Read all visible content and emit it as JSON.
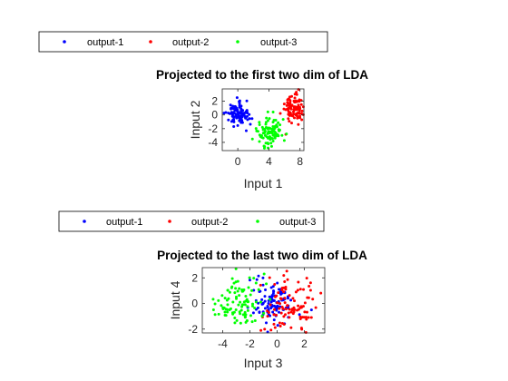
{
  "chart_data": [
    {
      "type": "scatter",
      "title": "Projected to the first two dim of LDA",
      "xlabel": "Input 1",
      "ylabel": "Input 2",
      "xlim": [
        -2,
        8.5
      ],
      "ylim": [
        -5.2,
        3.8
      ],
      "xticks": [
        0,
        4,
        8
      ],
      "xtick_labels": [
        "0",
        "4",
        "8"
      ],
      "yticks": [
        -4,
        -2,
        0,
        2
      ],
      "ytick_labels": [
        "-4",
        "-2",
        "0",
        "2"
      ],
      "legend": {
        "placement": "top",
        "orientation": "horizontal",
        "entries": [
          "output-1",
          "output-2",
          "output-3"
        ]
      },
      "series": [
        {
          "name": "output-1",
          "color": "#0000ff",
          "cluster": {
            "mean": [
              0.0,
              0.0
            ],
            "sd": [
              0.7,
              0.85
            ]
          },
          "count": 100
        },
        {
          "name": "output-2",
          "color": "#ff0000",
          "cluster": {
            "mean": [
              7.3,
              1.0
            ],
            "sd": [
              0.75,
              1.1
            ]
          },
          "count": 100
        },
        {
          "name": "output-3",
          "color": "#00ff00",
          "cluster": {
            "mean": [
              4.2,
              -2.5
            ],
            "sd": [
              0.85,
              1.0
            ]
          },
          "count": 100
        }
      ]
    },
    {
      "type": "scatter",
      "title": "Projected to the last two dim of LDA",
      "xlabel": "Input 3",
      "ylabel": "Input 4",
      "xlim": [
        -5.5,
        3.5
      ],
      "ylim": [
        -2.3,
        2.8
      ],
      "xticks": [
        -4,
        -2,
        0,
        2
      ],
      "xtick_labels": [
        "-4",
        "-2",
        "0",
        "2"
      ],
      "yticks": [
        -2,
        0,
        2
      ],
      "ytick_labels": [
        "-2",
        "0",
        "2"
      ],
      "legend": {
        "placement": "top",
        "orientation": "horizontal",
        "entries": [
          "output-1",
          "output-2",
          "output-3"
        ]
      },
      "series": [
        {
          "name": "output-1",
          "color": "#0000ff",
          "cluster": {
            "mean": [
              -0.2,
              -0.1
            ],
            "sd": [
              0.8,
              0.9
            ]
          },
          "count": 100
        },
        {
          "name": "output-2",
          "color": "#ff0000",
          "cluster": {
            "mean": [
              1.0,
              0.0
            ],
            "sd": [
              1.0,
              1.0
            ]
          },
          "count": 100
        },
        {
          "name": "output-3",
          "color": "#00ff00",
          "cluster": {
            "mean": [
              -2.8,
              0.2
            ],
            "sd": [
              0.95,
              1.0
            ]
          },
          "count": 100
        }
      ]
    }
  ]
}
